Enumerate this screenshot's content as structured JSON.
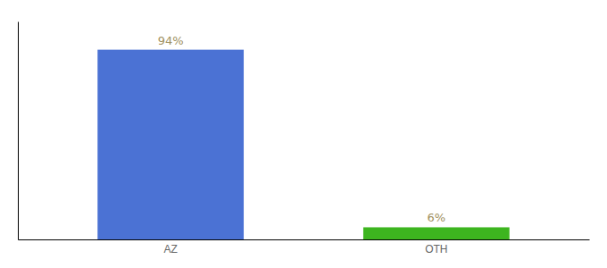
{
  "chart_data": {
    "type": "bar",
    "categories": [
      "AZ",
      "OTH"
    ],
    "values": [
      94,
      6
    ],
    "colors": [
      "#4b72d4",
      "#3db51f"
    ],
    "data_labels": true,
    "value_labels": [
      "94%",
      "6%"
    ],
    "ylim": [
      0,
      108
    ],
    "tick_labels": "x",
    "grid": false
  }
}
